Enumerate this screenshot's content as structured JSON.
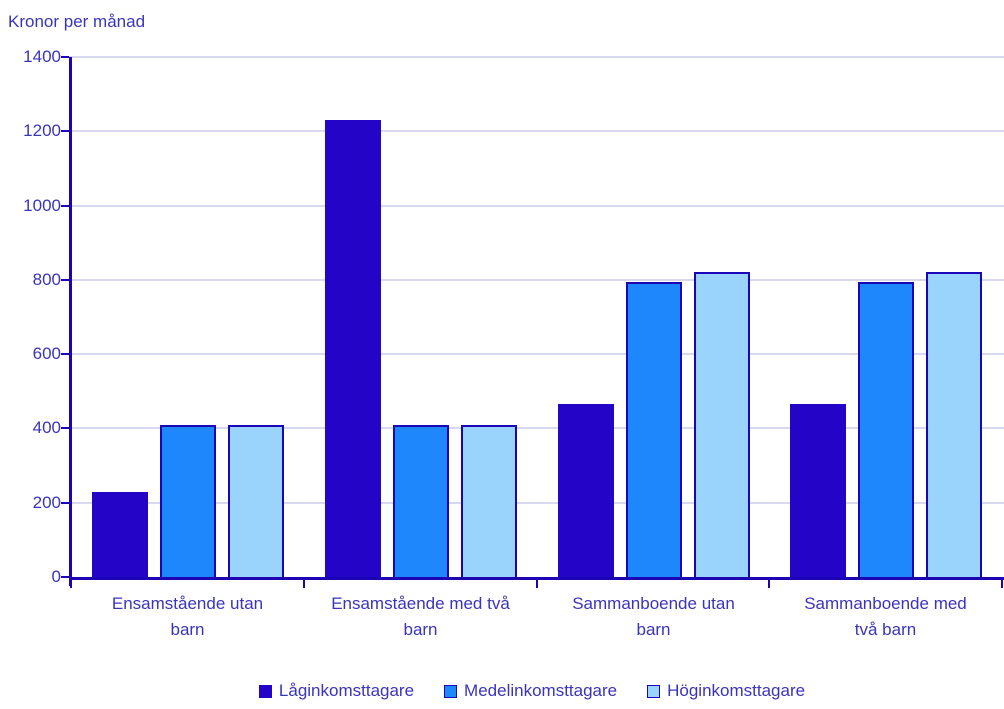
{
  "chart_data": {
    "type": "bar",
    "title": "Kronor per månad",
    "ylabel": "Kronor per månad",
    "xlabel": "",
    "categories": [
      "Ensamstående utan barn",
      "Ensamstående med två barn",
      "Sammanboende utan barn",
      "Sammanboende med två barn"
    ],
    "category_lines": [
      [
        "Ensamstående utan",
        "barn"
      ],
      [
        "Ensamstående med två",
        "barn"
      ],
      [
        "Sammanboende utan",
        "barn"
      ],
      [
        "Sammanboende med",
        "två barn"
      ]
    ],
    "series": [
      {
        "name": "Låginkomsttagare",
        "color": "#2404c6",
        "border": "#2404c6",
        "values": [
          230,
          1230,
          465,
          465
        ]
      },
      {
        "name": "Medelinkomsttagare",
        "color": "#1e87fb",
        "border": "#1a05b8",
        "values": [
          410,
          410,
          795,
          795
        ]
      },
      {
        "name": "Höginkomsttagare",
        "color": "#9ad3fc",
        "border": "#1a05b8",
        "values": [
          410,
          410,
          820,
          820
        ]
      }
    ],
    "yticks": [
      0,
      200,
      400,
      600,
      800,
      1000,
      1200,
      1400
    ],
    "ylim": [
      0,
      1400
    ],
    "grid": true,
    "legend_position": "bottom",
    "colors": {
      "axis": "#1c04b4",
      "grid": "#d8d8ef",
      "text": "#3a34bd",
      "background": "#ffffff"
    }
  }
}
